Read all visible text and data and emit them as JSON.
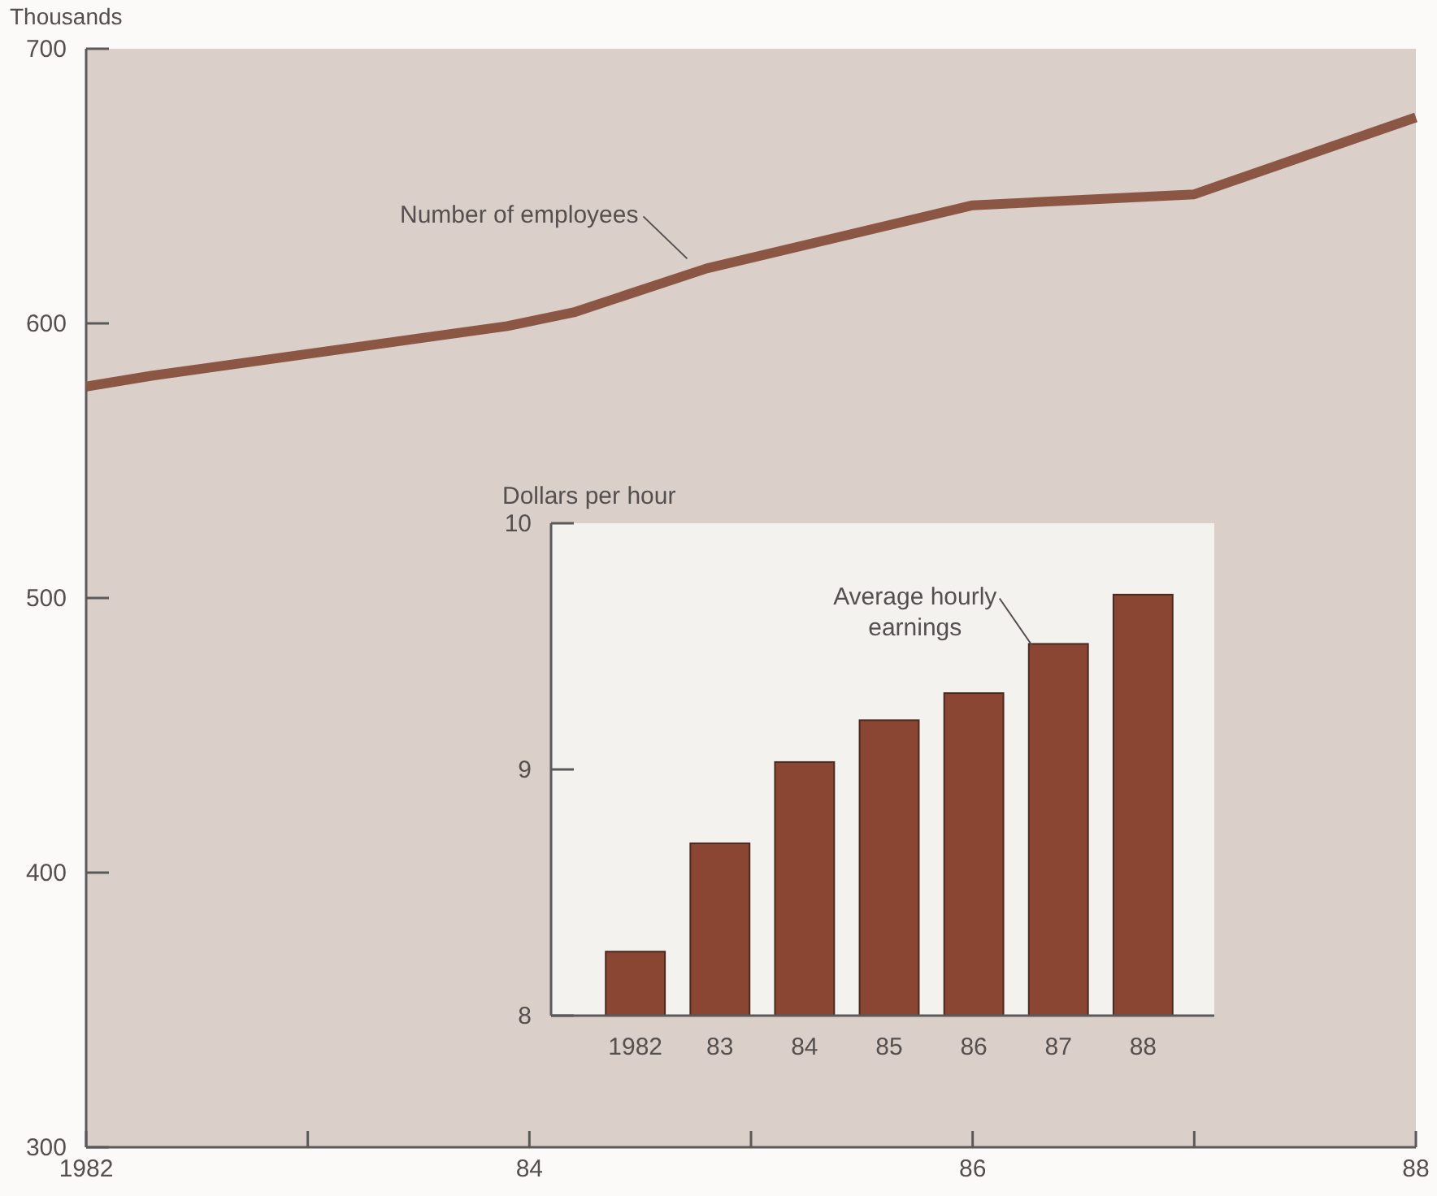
{
  "chart_data": [
    {
      "type": "line",
      "ylabel": "Thousands",
      "x": [
        1982,
        1982.3,
        1983.9,
        1984.2,
        1984.8,
        1986,
        1987,
        1988
      ],
      "series": [
        {
          "name": "Number of employees",
          "color": "#8c5644",
          "values": [
            577,
            581,
            599,
            604,
            620,
            643,
            647,
            675
          ]
        }
      ],
      "xlim": [
        1982,
        1988
      ],
      "xticks": [
        {
          "value": 1982,
          "label": "1982"
        },
        {
          "value": 1983,
          "label": null
        },
        {
          "value": 1984,
          "label": "84"
        },
        {
          "value": 1985,
          "label": null
        },
        {
          "value": 1986,
          "label": "86"
        },
        {
          "value": 1987,
          "label": null
        },
        {
          "value": 1988,
          "label": "88"
        }
      ],
      "ylim": [
        300,
        700
      ],
      "yticks": [
        300,
        400,
        500,
        600,
        700
      ],
      "grid": false
    },
    {
      "type": "bar",
      "ylabel": "Dollars per hour",
      "categories": [
        "1982",
        "83",
        "84",
        "85",
        "86",
        "87",
        "88"
      ],
      "series": [
        {
          "name": "Average hourly earnings",
          "color": "#8a4533",
          "values": [
            8.26,
            8.7,
            9.03,
            9.2,
            9.31,
            9.51,
            9.71
          ]
        }
      ],
      "ylim": [
        8,
        10
      ],
      "yticks": [
        8,
        9,
        10
      ],
      "grid": false
    }
  ]
}
